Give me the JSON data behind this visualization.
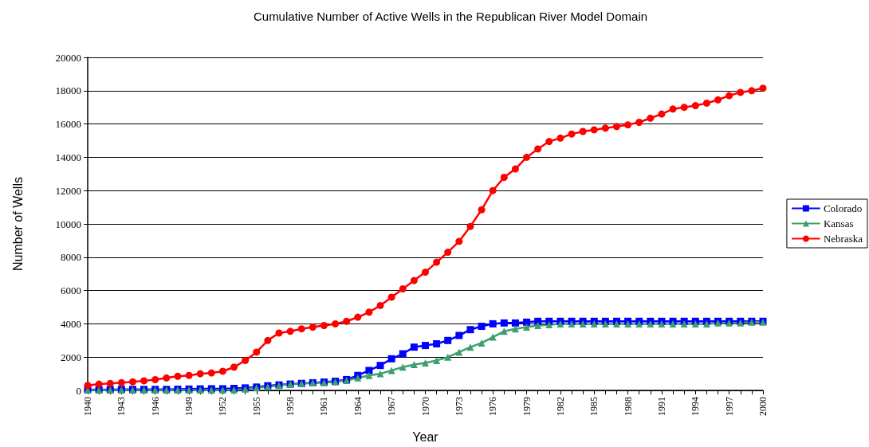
{
  "chart_data": {
    "type": "line",
    "title": "Cumulative Number of Active Wells in the Republican River Model Domain",
    "xlabel": "Year",
    "ylabel": "Number of Wells",
    "x": [
      1940,
      1941,
      1942,
      1943,
      1944,
      1945,
      1946,
      1947,
      1948,
      1949,
      1950,
      1951,
      1952,
      1953,
      1954,
      1955,
      1956,
      1957,
      1958,
      1959,
      1960,
      1961,
      1962,
      1963,
      1964,
      1965,
      1966,
      1967,
      1968,
      1969,
      1970,
      1971,
      1972,
      1973,
      1974,
      1975,
      1976,
      1977,
      1978,
      1979,
      1980,
      1981,
      1982,
      1983,
      1984,
      1985,
      1986,
      1987,
      1988,
      1989,
      1990,
      1991,
      1992,
      1993,
      1994,
      1995,
      1996,
      1997,
      1998,
      1999,
      2000
    ],
    "series": [
      {
        "name": "Colorado",
        "color": "#0000ff",
        "marker": "square",
        "values": [
          50,
          50,
          50,
          60,
          60,
          60,
          60,
          60,
          70,
          80,
          90,
          100,
          100,
          120,
          150,
          200,
          280,
          330,
          380,
          420,
          460,
          500,
          550,
          650,
          900,
          1200,
          1500,
          1900,
          2200,
          2600,
          2700,
          2800,
          3000,
          3300,
          3650,
          3850,
          4000,
          4050,
          4050,
          4100,
          4150,
          4150,
          4150,
          4150,
          4150,
          4150,
          4150,
          4150,
          4150,
          4150,
          4150,
          4150,
          4150,
          4150,
          4150,
          4150,
          4150,
          4150,
          4150,
          4150,
          4150
        ]
      },
      {
        "name": "Kansas",
        "color": "#3d9f6f",
        "marker": "triangle",
        "values": [
          20,
          20,
          20,
          20,
          20,
          20,
          20,
          20,
          20,
          20,
          20,
          20,
          20,
          30,
          80,
          150,
          220,
          300,
          380,
          420,
          450,
          470,
          520,
          600,
          750,
          900,
          1000,
          1200,
          1400,
          1550,
          1650,
          1800,
          2000,
          2300,
          2600,
          2850,
          3200,
          3550,
          3700,
          3800,
          3900,
          3950,
          4000,
          4000,
          4000,
          4000,
          4000,
          4000,
          4000,
          4000,
          4000,
          4000,
          4000,
          4000,
          4000,
          4000,
          4050,
          4050,
          4050,
          4100,
          4100
        ]
      },
      {
        "name": "Nebraska",
        "color": "#ff0000",
        "marker": "circle",
        "values": [
          300,
          380,
          420,
          470,
          520,
          580,
          650,
          750,
          850,
          900,
          1000,
          1050,
          1150,
          1400,
          1800,
          2300,
          3000,
          3450,
          3550,
          3700,
          3800,
          3900,
          4000,
          4150,
          4400,
          4700,
          5100,
          5600,
          6100,
          6600,
          7100,
          7700,
          8300,
          8950,
          9850,
          10850,
          12000,
          12800,
          13300,
          14000,
          14500,
          14950,
          15150,
          15400,
          15550,
          15650,
          15750,
          15850,
          15950,
          16100,
          16350,
          16600,
          16900,
          17000,
          17100,
          17250,
          17450,
          17700,
          17900,
          18000,
          18150
        ]
      }
    ],
    "xlim": [
      1940,
      2000
    ],
    "xticks": [
      1940,
      {
        "value": 1941,
        "label": null
      },
      {
        "value": 1942,
        "label": null
      },
      1943,
      {
        "value": 1944,
        "label": null
      },
      {
        "value": 1945,
        "label": null
      },
      1946,
      {
        "value": 1947,
        "label": null
      },
      {
        "value": 1948,
        "label": null
      },
      1949,
      {
        "value": 1950,
        "label": null
      },
      {
        "value": 1951,
        "label": null
      },
      1952,
      {
        "value": 1953,
        "label": null
      },
      {
        "value": 1954,
        "label": null
      },
      1955,
      {
        "value": 1956,
        "label": null
      },
      {
        "value": 1957,
        "label": null
      },
      1958,
      {
        "value": 1959,
        "label": null
      },
      {
        "value": 1960,
        "label": null
      },
      1961,
      {
        "value": 1962,
        "label": null
      },
      {
        "value": 1963,
        "label": null
      },
      1964,
      {
        "value": 1965,
        "label": null
      },
      {
        "value": 1966,
        "label": null
      },
      1967,
      {
        "value": 1968,
        "label": null
      },
      {
        "value": 1969,
        "label": null
      },
      1970,
      {
        "value": 1971,
        "label": null
      },
      {
        "value": 1972,
        "label": null
      },
      1973,
      {
        "value": 1974,
        "label": null
      },
      {
        "value": 1975,
        "label": null
      },
      1976,
      {
        "value": 1977,
        "label": null
      },
      {
        "value": 1978,
        "label": null
      },
      1979,
      {
        "value": 1980,
        "label": null
      },
      {
        "value": 1981,
        "label": null
      },
      1982,
      {
        "value": 1983,
        "label": null
      },
      {
        "value": 1984,
        "label": null
      },
      1985,
      {
        "value": 1986,
        "label": null
      },
      {
        "value": 1987,
        "label": null
      },
      1988,
      {
        "value": 1989,
        "label": null
      },
      {
        "value": 1990,
        "label": null
      },
      1991,
      {
        "value": 1992,
        "label": null
      },
      {
        "value": 1993,
        "label": null
      },
      1994,
      {
        "value": 1995,
        "label": null
      },
      {
        "value": 1996,
        "label": null
      },
      1997,
      {
        "value": 1998,
        "label": null
      },
      {
        "value": 1999,
        "label": null
      },
      2000
    ],
    "ylim": [
      0,
      20000
    ],
    "yticks": [
      0,
      2000,
      4000,
      6000,
      8000,
      10000,
      12000,
      14000,
      16000,
      18000,
      20000
    ],
    "grid": "y",
    "legend": "right",
    "line_style": "solid"
  }
}
